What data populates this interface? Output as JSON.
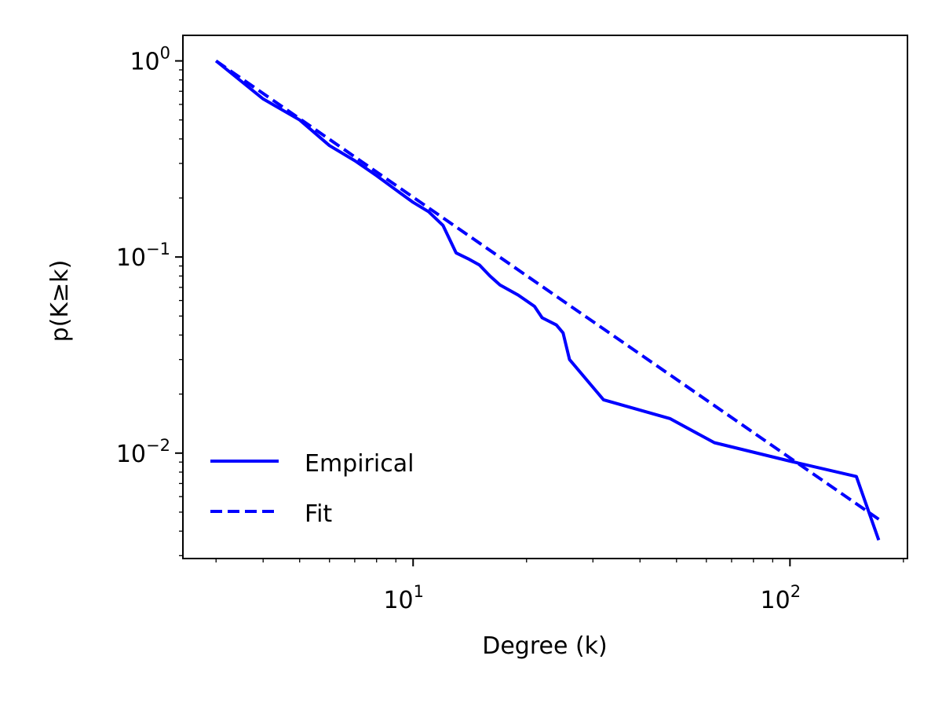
{
  "chart_data": {
    "type": "line",
    "xlabel": "Degree (k)",
    "ylabel": "p(K≥k)",
    "xscale": "log",
    "yscale": "log",
    "xlim": [
      2.45,
      205
    ],
    "ylim": [
      0.0029,
      1.35
    ],
    "grid": false,
    "legend_position": "lower-left",
    "x_ticks": [
      {
        "base": "10",
        "exp": "1",
        "value": 10
      },
      {
        "base": "10",
        "exp": "2",
        "value": 100
      }
    ],
    "y_ticks": [
      {
        "base": "10",
        "exp": "0",
        "value": 1
      },
      {
        "base": "10",
        "exp": "−1",
        "value": 0.1
      },
      {
        "base": "10",
        "exp": "−2",
        "value": 0.01
      }
    ],
    "series": [
      {
        "name": "Empirical",
        "style": "solid",
        "color": "#0000ff",
        "points": [
          [
            3,
            1.0
          ],
          [
            4,
            0.64
          ],
          [
            5,
            0.5
          ],
          [
            6,
            0.37
          ],
          [
            7,
            0.31
          ],
          [
            8,
            0.26
          ],
          [
            9,
            0.22
          ],
          [
            10,
            0.19
          ],
          [
            11,
            0.17
          ],
          [
            12,
            0.145
          ],
          [
            13,
            0.105
          ],
          [
            14,
            0.098
          ],
          [
            15,
            0.091
          ],
          [
            16,
            0.08
          ],
          [
            17,
            0.072
          ],
          [
            19,
            0.064
          ],
          [
            21,
            0.056
          ],
          [
            22,
            0.049
          ],
          [
            24,
            0.045
          ],
          [
            25,
            0.041
          ],
          [
            26,
            0.03
          ],
          [
            32,
            0.0187
          ],
          [
            48,
            0.015
          ],
          [
            63,
            0.0113
          ],
          [
            100,
            0.0091
          ],
          [
            150,
            0.0076
          ],
          [
            172,
            0.0036
          ]
        ]
      },
      {
        "name": "Fit",
        "style": "dashed",
        "color": "#0000ff",
        "points": [
          [
            3,
            1.0
          ],
          [
            172,
            0.0046
          ]
        ]
      }
    ]
  }
}
